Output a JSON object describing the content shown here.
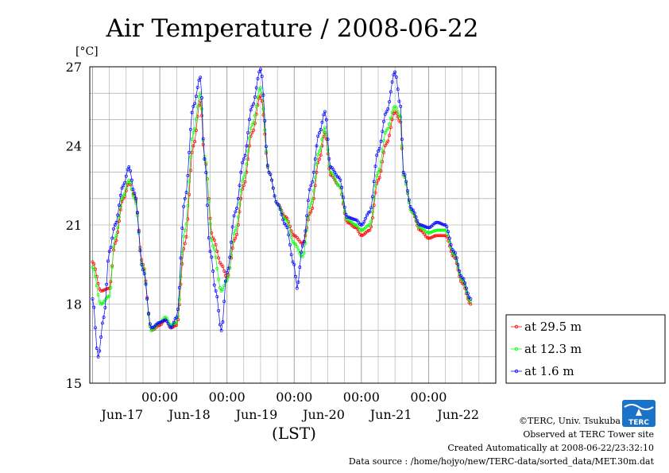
{
  "title": "Air Temperature / 2008-06-22",
  "y_unit": "[°C]",
  "x_axis_label": "(LST)",
  "credits": {
    "copyright": "©TERC, Univ. Tsukuba",
    "observed": "Observed at TERC Tower site",
    "created": "Created Automatically at 2008-06-22/23:32:10",
    "source": "Data source : /home/hojyo/new/TERC-data/sorted_data/MET.30m.dat"
  },
  "logo_text": "TERC",
  "colors": {
    "s295": "#ff0000",
    "s123": "#00ff00",
    "s16": "#0000ff",
    "grid": "#999999"
  },
  "chart_data": {
    "type": "line",
    "title": "Air Temperature / 2008-06-22",
    "ylabel": "[°C]",
    "xlabel": "(LST)",
    "ylim": [
      15,
      27
    ],
    "yticks": [
      15,
      18,
      21,
      24,
      27
    ],
    "xlim_hours_range": "2008-06-16 23:00 to 2008-06-22 24:00",
    "xtick_labels": [
      "00:00",
      "00:00",
      "00:00",
      "00:00",
      "00:00"
    ],
    "xtick_times": [
      "2008-06-18 00:00",
      "2008-06-19 00:00",
      "2008-06-20 00:00",
      "2008-06-21 00:00",
      "2008-06-22 00:00"
    ],
    "date_labels": [
      "Jun-17",
      "Jun-18",
      "Jun-19",
      "Jun-20",
      "Jun-21",
      "Jun-22"
    ],
    "date_label_times": [
      "2008-06-17 12:00",
      "2008-06-18 12:00",
      "2008-06-19 12:00",
      "2008-06-20 12:00",
      "2008-06-21 12:00",
      "2008-06-22 12:00"
    ],
    "grid": true,
    "legend_position": "right",
    "series": [
      {
        "name": "at 29.5 m",
        "color": "#ff0000",
        "points": [
          [
            "2008-06-17 00:00",
            19.6
          ],
          [
            "2008-06-17 03:00",
            18.5
          ],
          [
            "2008-06-17 06:00",
            18.6
          ],
          [
            "2008-06-17 08:00",
            20.3
          ],
          [
            "2008-06-17 11:00",
            22.0
          ],
          [
            "2008-06-17 13:00",
            22.6
          ],
          [
            "2008-06-17 15:00",
            22.1
          ],
          [
            "2008-06-17 18:00",
            19.5
          ],
          [
            "2008-06-17 21:00",
            17.0
          ],
          [
            "2008-06-18 00:00",
            17.2
          ],
          [
            "2008-06-18 02:00",
            17.4
          ],
          [
            "2008-06-18 04:00",
            17.1
          ],
          [
            "2008-06-18 06:00",
            17.2
          ],
          [
            "2008-06-18 09:00",
            20.3
          ],
          [
            "2008-06-18 12:00",
            24.0
          ],
          [
            "2008-06-18 14:30",
            25.7
          ],
          [
            "2008-06-18 16:00",
            23.5
          ],
          [
            "2008-06-18 19:00",
            20.5
          ],
          [
            "2008-06-18 22:00",
            19.5
          ],
          [
            "2008-06-19 00:00",
            19.0
          ],
          [
            "2008-06-19 03:00",
            20.5
          ],
          [
            "2008-06-19 06:00",
            22.5
          ],
          [
            "2008-06-19 09:00",
            24.5
          ],
          [
            "2008-06-19 12:00",
            25.9
          ],
          [
            "2008-06-19 15:00",
            23.0
          ],
          [
            "2008-06-19 18:00",
            21.8
          ],
          [
            "2008-06-19 21:00",
            21.3
          ],
          [
            "2008-06-20 00:00",
            20.6
          ],
          [
            "2008-06-20 03:00",
            20.3
          ],
          [
            "2008-06-20 06:00",
            21.5
          ],
          [
            "2008-06-20 09:00",
            23.5
          ],
          [
            "2008-06-20 11:00",
            24.5
          ],
          [
            "2008-06-20 13:00",
            22.9
          ],
          [
            "2008-06-20 16:00",
            22.5
          ],
          [
            "2008-06-20 19:00",
            21.1
          ],
          [
            "2008-06-20 22:00",
            20.9
          ],
          [
            "2008-06-21 00:00",
            20.6
          ],
          [
            "2008-06-21 03:00",
            20.8
          ],
          [
            "2008-06-21 06:00",
            22.7
          ],
          [
            "2008-06-21 09:00",
            24.1
          ],
          [
            "2008-06-21 12:00",
            25.3
          ],
          [
            "2008-06-21 14:00",
            24.9
          ],
          [
            "2008-06-21 15:00",
            22.9
          ],
          [
            "2008-06-21 18:00",
            21.5
          ],
          [
            "2008-06-21 21:00",
            20.8
          ],
          [
            "2008-06-22 00:00",
            20.5
          ],
          [
            "2008-06-22 03:00",
            20.6
          ],
          [
            "2008-06-22 06:00",
            20.6
          ],
          [
            "2008-06-22 09:00",
            19.8
          ],
          [
            "2008-06-22 12:00",
            18.8
          ],
          [
            "2008-06-22 15:00",
            18.0
          ]
        ]
      },
      {
        "name": "at 12.3 m",
        "color": "#00ff00",
        "points": [
          [
            "2008-06-17 00:00",
            19.4
          ],
          [
            "2008-06-17 03:00",
            18.0
          ],
          [
            "2008-06-17 06:00",
            18.3
          ],
          [
            "2008-06-17 08:00",
            20.5
          ],
          [
            "2008-06-17 11:00",
            22.1
          ],
          [
            "2008-06-17 13:00",
            22.7
          ],
          [
            "2008-06-17 15:00",
            22.0
          ],
          [
            "2008-06-17 18:00",
            19.4
          ],
          [
            "2008-06-17 21:00",
            17.0
          ],
          [
            "2008-06-18 00:00",
            17.3
          ],
          [
            "2008-06-18 02:00",
            17.5
          ],
          [
            "2008-06-18 04:00",
            17.2
          ],
          [
            "2008-06-18 06:00",
            17.3
          ],
          [
            "2008-06-18 09:00",
            20.8
          ],
          [
            "2008-06-18 12:00",
            24.5
          ],
          [
            "2008-06-18 14:30",
            26.0
          ],
          [
            "2008-06-18 16:00",
            23.6
          ],
          [
            "2008-06-18 19:00",
            20.2
          ],
          [
            "2008-06-18 22:00",
            18.5
          ],
          [
            "2008-06-19 00:00",
            18.9
          ],
          [
            "2008-06-19 03:00",
            20.8
          ],
          [
            "2008-06-19 06:00",
            22.8
          ],
          [
            "2008-06-19 09:00",
            24.8
          ],
          [
            "2008-06-19 12:00",
            26.2
          ],
          [
            "2008-06-19 15:00",
            23.0
          ],
          [
            "2008-06-19 18:00",
            21.8
          ],
          [
            "2008-06-19 21:00",
            21.2
          ],
          [
            "2008-06-20 00:00",
            20.3
          ],
          [
            "2008-06-20 03:00",
            19.8
          ],
          [
            "2008-06-20 06:00",
            21.8
          ],
          [
            "2008-06-20 09:00",
            23.8
          ],
          [
            "2008-06-20 11:00",
            24.7
          ],
          [
            "2008-06-20 13:00",
            23.0
          ],
          [
            "2008-06-20 16:00",
            22.5
          ],
          [
            "2008-06-20 19:00",
            21.2
          ],
          [
            "2008-06-20 22:00",
            21.0
          ],
          [
            "2008-06-21 00:00",
            20.8
          ],
          [
            "2008-06-21 03:00",
            21.0
          ],
          [
            "2008-06-21 06:00",
            23.0
          ],
          [
            "2008-06-21 09:00",
            24.6
          ],
          [
            "2008-06-21 12:00",
            25.5
          ],
          [
            "2008-06-21 14:00",
            25.1
          ],
          [
            "2008-06-21 15:00",
            22.9
          ],
          [
            "2008-06-21 18:00",
            21.5
          ],
          [
            "2008-06-21 21:00",
            20.9
          ],
          [
            "2008-06-22 00:00",
            20.7
          ],
          [
            "2008-06-22 03:00",
            20.8
          ],
          [
            "2008-06-22 06:00",
            20.8
          ],
          [
            "2008-06-22 09:00",
            19.9
          ],
          [
            "2008-06-22 12:00",
            18.9
          ],
          [
            "2008-06-22 15:00",
            18.1
          ]
        ]
      },
      {
        "name": "at 1.6 m",
        "color": "#0000ff",
        "points": [
          [
            "2008-06-17 00:00",
            18.2
          ],
          [
            "2008-06-17 02:00",
            16.0
          ],
          [
            "2008-06-17 04:00",
            17.5
          ],
          [
            "2008-06-17 06:00",
            20.0
          ],
          [
            "2008-06-17 08:00",
            21.0
          ],
          [
            "2008-06-17 11:00",
            22.5
          ],
          [
            "2008-06-17 13:00",
            23.2
          ],
          [
            "2008-06-17 15:00",
            22.2
          ],
          [
            "2008-06-17 18:00",
            19.3
          ],
          [
            "2008-06-17 21:00",
            17.1
          ],
          [
            "2008-06-18 00:00",
            17.3
          ],
          [
            "2008-06-18 02:00",
            17.4
          ],
          [
            "2008-06-18 04:00",
            17.1
          ],
          [
            "2008-06-18 06:00",
            17.5
          ],
          [
            "2008-06-18 09:00",
            22.0
          ],
          [
            "2008-06-18 12:00",
            25.5
          ],
          [
            "2008-06-18 14:30",
            26.6
          ],
          [
            "2008-06-18 16:00",
            23.5
          ],
          [
            "2008-06-18 18:00",
            20.0
          ],
          [
            "2008-06-18 20:00",
            18.5
          ],
          [
            "2008-06-18 22:00",
            17.0
          ],
          [
            "2008-06-19 00:00",
            19.2
          ],
          [
            "2008-06-19 03:00",
            21.5
          ],
          [
            "2008-06-19 06:00",
            23.5
          ],
          [
            "2008-06-19 09:00",
            25.5
          ],
          [
            "2008-06-19 12:00",
            26.9
          ],
          [
            "2008-06-19 15:00",
            23.0
          ],
          [
            "2008-06-19 18:00",
            21.8
          ],
          [
            "2008-06-19 21:00",
            21.0
          ],
          [
            "2008-06-20 00:00",
            19.5
          ],
          [
            "2008-06-20 01:00",
            18.6
          ],
          [
            "2008-06-20 03:00",
            20.2
          ],
          [
            "2008-06-20 06:00",
            22.5
          ],
          [
            "2008-06-20 09:00",
            24.5
          ],
          [
            "2008-06-20 11:00",
            25.3
          ],
          [
            "2008-06-20 13:00",
            23.2
          ],
          [
            "2008-06-20 16:00",
            22.8
          ],
          [
            "2008-06-20 19:00",
            21.3
          ],
          [
            "2008-06-20 22:00",
            21.2
          ],
          [
            "2008-06-21 00:00",
            21.0
          ],
          [
            "2008-06-21 03:00",
            21.5
          ],
          [
            "2008-06-21 06:00",
            23.8
          ],
          [
            "2008-06-21 09:00",
            25.3
          ],
          [
            "2008-06-21 12:00",
            26.8
          ],
          [
            "2008-06-21 14:00",
            25.5
          ],
          [
            "2008-06-21 15:00",
            23.0
          ],
          [
            "2008-06-21 18:00",
            21.6
          ],
          [
            "2008-06-21 21:00",
            21.0
          ],
          [
            "2008-06-22 00:00",
            20.9
          ],
          [
            "2008-06-22 03:00",
            21.1
          ],
          [
            "2008-06-22 06:00",
            21.0
          ],
          [
            "2008-06-22 09:00",
            20.0
          ],
          [
            "2008-06-22 12:00",
            19.0
          ],
          [
            "2008-06-22 15:00",
            18.2
          ]
        ]
      }
    ]
  }
}
